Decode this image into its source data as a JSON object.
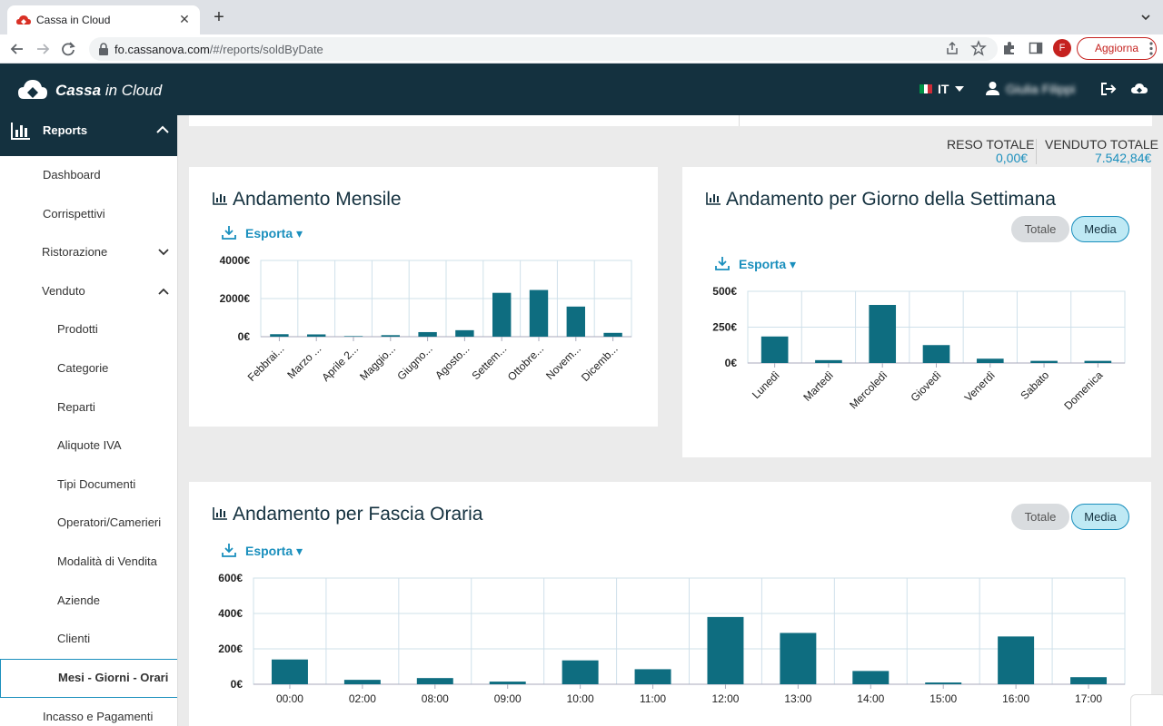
{
  "browser": {
    "tab_title": "Cassa in Cloud",
    "url_host": "fo.cassanova.com",
    "url_path": "/#/reports/soldByDate",
    "profile_initial": "F",
    "update_label": "Aggiorna"
  },
  "header": {
    "logo_bold": "Cassa",
    "logo_rest": " in Cloud",
    "language": "IT",
    "user_name": "Giulia Filippi"
  },
  "sidebar": {
    "section_label": "Reports",
    "items": [
      {
        "label": "Dashboard"
      },
      {
        "label": "Corrispettivi"
      },
      {
        "label": "Ristorazione"
      },
      {
        "label": "Venduto"
      },
      {
        "label": "Prodotti"
      },
      {
        "label": "Categorie"
      },
      {
        "label": "Reparti"
      },
      {
        "label": "Aliquote IVA"
      },
      {
        "label": "Tipi Documenti"
      },
      {
        "label": "Operatori/Camerieri"
      },
      {
        "label": "Modalità di Vendita"
      },
      {
        "label": "Aziende"
      },
      {
        "label": "Clienti"
      },
      {
        "label": "Mesi - Giorni - Orari"
      },
      {
        "label": "Incasso e Pagamenti"
      }
    ]
  },
  "totals": {
    "reso_label": "RESO TOTALE",
    "reso_value": "0,00€",
    "venduto_label": "VENDUTO TOTALE",
    "venduto_value": "7.542,84€"
  },
  "export_label": "Esporta",
  "toggle": {
    "totale": "Totale",
    "media": "Media"
  },
  "colors": {
    "bar": "#0e6d80",
    "accent": "#1a8fbd",
    "header": "#14313f"
  },
  "chart_data": [
    {
      "type": "bar",
      "title": "Andamento Mensile",
      "categories": [
        "Febbrai...",
        "Marzo ...",
        "Aprile 2...",
        "Maggio...",
        "Giugno...",
        "Agosto...",
        "Settem...",
        "Ottobre...",
        "Novem...",
        "Dicemb..."
      ],
      "values": [
        130,
        120,
        30,
        80,
        240,
        340,
        2300,
        2450,
        1580,
        200
      ],
      "ylim": [
        0,
        4000
      ],
      "yticks": [
        "4000€",
        "2000€",
        "0€"
      ],
      "grid": true
    },
    {
      "type": "bar",
      "title": "Andamento per Giorno della Settimana",
      "categories": [
        "Lunedì",
        "Martedì",
        "Mercoledì",
        "Giovedì",
        "Venerdì",
        "Sabato",
        "Domenica"
      ],
      "values": [
        185,
        20,
        405,
        125,
        30,
        15,
        15
      ],
      "ylim": [
        0,
        500
      ],
      "yticks": [
        "500€",
        "250€",
        "0€"
      ],
      "grid": true
    },
    {
      "type": "bar",
      "title": "Andamento per Fascia Oraria",
      "categories": [
        "00:00",
        "02:00",
        "08:00",
        "09:00",
        "10:00",
        "11:00",
        "12:00",
        "13:00",
        "14:00",
        "15:00",
        "16:00",
        "17:00"
      ],
      "values": [
        140,
        25,
        35,
        15,
        135,
        85,
        380,
        290,
        75,
        10,
        270,
        40
      ],
      "ylim": [
        0,
        600
      ],
      "yticks": [
        "600€",
        "400€",
        "200€",
        "0€"
      ],
      "grid": true
    }
  ]
}
